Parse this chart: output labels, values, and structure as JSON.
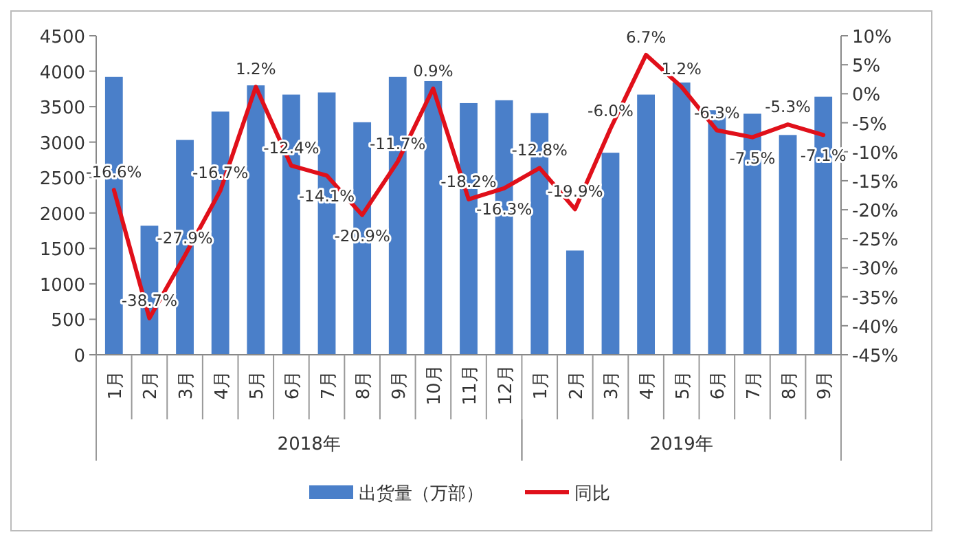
{
  "chart_data": {
    "type": "bar",
    "categories": [
      "1月",
      "2月",
      "3月",
      "4月",
      "5月",
      "6月",
      "7月",
      "8月",
      "9月",
      "10月",
      "11月",
      "12月",
      "1月",
      "2月",
      "3月",
      "4月",
      "5月",
      "6月",
      "7月",
      "8月",
      "9月"
    ],
    "series": [
      {
        "name": "出货量（万部）",
        "color": "#4a7fc9",
        "values": [
          3920,
          1820,
          3030,
          3430,
          3800,
          3670,
          3700,
          3280,
          3920,
          3860,
          3550,
          3590,
          3410,
          1470,
          2850,
          3670,
          3840,
          3450,
          3400,
          3100,
          3640
        ]
      },
      {
        "name": "同比",
        "type": "line",
        "axis": "y2",
        "color": "#e0101a",
        "values": [
          -16.6,
          -38.7,
          -27.9,
          -16.7,
          1.2,
          -12.4,
          -14.1,
          -20.9,
          -11.7,
          0.9,
          -18.2,
          -16.3,
          -12.8,
          -19.9,
          -6.0,
          6.7,
          1.2,
          -6.3,
          -7.5,
          -5.3,
          -7.1
        ],
        "value_labels": [
          "-16.6%",
          "-38.7%",
          "-27.9%",
          "-16.7%",
          "1.2%",
          "-12.4%",
          "-14.1%",
          "-20.9%",
          "-11.7%",
          "0.9%",
          "-18.2%",
          "-16.3%",
          "-12.8%",
          "-19.9%",
          "-6.0%",
          "6.7%",
          "1.2%",
          "-6.3%",
          "-7.5%",
          "-5.3%",
          "-7.1%"
        ]
      }
    ],
    "ylim": [
      0,
      4500
    ],
    "yticks": [
      0,
      500,
      1000,
      1500,
      2000,
      2500,
      3000,
      3500,
      4000,
      4500
    ],
    "y2lim": [
      -45,
      10
    ],
    "y2ticks": [
      {
        "value": 10,
        "label": "10%"
      },
      {
        "value": 5,
        "label": "5%"
      },
      {
        "value": 0,
        "label": "0%"
      },
      {
        "value": -5,
        "label": "-5%"
      },
      {
        "value": -10,
        "label": "-10%"
      },
      {
        "value": -15,
        "label": "-15%"
      },
      {
        "value": -20,
        "label": "-20%"
      },
      {
        "value": -25,
        "label": "-25%"
      },
      {
        "value": -30,
        "label": "-30%"
      },
      {
        "value": -35,
        "label": "-35%"
      },
      {
        "value": -40,
        "label": "-40%"
      },
      {
        "value": -45,
        "label": "-45%"
      }
    ],
    "annotations": [
      "2018年",
      "2019年"
    ],
    "legend": "bottom",
    "grid": false
  }
}
